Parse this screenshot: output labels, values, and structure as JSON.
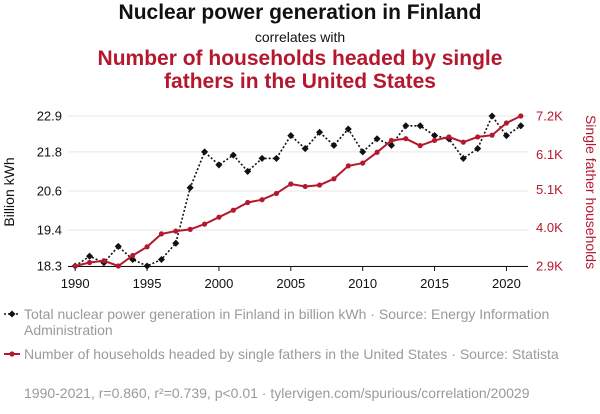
{
  "chart_data": {
    "type": "line",
    "title": "Nuclear power generation in Finland",
    "subtitle": "correlates with",
    "title2_line1": "Number of households headed by single",
    "title2_line2": "fathers in the United States",
    "left_axis_label": "Billion kWh",
    "right_axis_label": "Single father households",
    "x_ticks": [
      "1990",
      "1995",
      "2000",
      "2005",
      "2010",
      "2015",
      "2020"
    ],
    "left_ticks": [
      "18.3",
      "19.4",
      "20.6",
      "21.8",
      "22.9"
    ],
    "right_ticks": [
      "2.9K",
      "4.0K",
      "5.1K",
      "6.1K",
      "7.2K"
    ],
    "xlim": [
      1989.5,
      2021.5
    ],
    "left_ylim": [
      18.3,
      22.9
    ],
    "right_ylim": [
      2.9,
      7.2
    ],
    "x": [
      1990,
      1991,
      1992,
      1993,
      1994,
      1995,
      1996,
      1997,
      1998,
      1999,
      2000,
      2001,
      2002,
      2003,
      2004,
      2005,
      2006,
      2007,
      2008,
      2009,
      2010,
      2011,
      2012,
      2013,
      2014,
      2015,
      2016,
      2017,
      2018,
      2019,
      2020,
      2021
    ],
    "series": [
      {
        "name": "Total nuclear power generation in Finland in billion kWh · Source: Energy Information Administration",
        "axis": "left",
        "color": "#111111",
        "style": "dotted",
        "values": [
          18.3,
          18.6,
          18.4,
          18.9,
          18.5,
          18.3,
          18.5,
          19.0,
          20.7,
          21.8,
          21.4,
          21.7,
          21.2,
          21.6,
          21.6,
          22.3,
          21.9,
          22.4,
          22.0,
          22.5,
          21.8,
          22.2,
          22.0,
          22.6,
          22.6,
          22.3,
          22.2,
          21.6,
          21.9,
          22.9,
          22.3,
          22.6
        ]
      },
      {
        "name": "Number of households headed by single fathers in the United States · Source: Statista",
        "axis": "right",
        "color": "#b5182e",
        "style": "solid",
        "values": [
          2.9,
          3.0,
          3.05,
          2.9,
          3.2,
          3.45,
          3.82,
          3.9,
          3.95,
          4.1,
          4.3,
          4.5,
          4.72,
          4.8,
          4.98,
          5.25,
          5.18,
          5.22,
          5.4,
          5.77,
          5.85,
          6.16,
          6.5,
          6.55,
          6.35,
          6.5,
          6.6,
          6.45,
          6.6,
          6.65,
          7.0,
          7.2
        ]
      }
    ],
    "footer": "1990-2021, r=0.860, r²=0.739, p<0.01 · tylervigen.com/spurious/correlation/20029"
  }
}
